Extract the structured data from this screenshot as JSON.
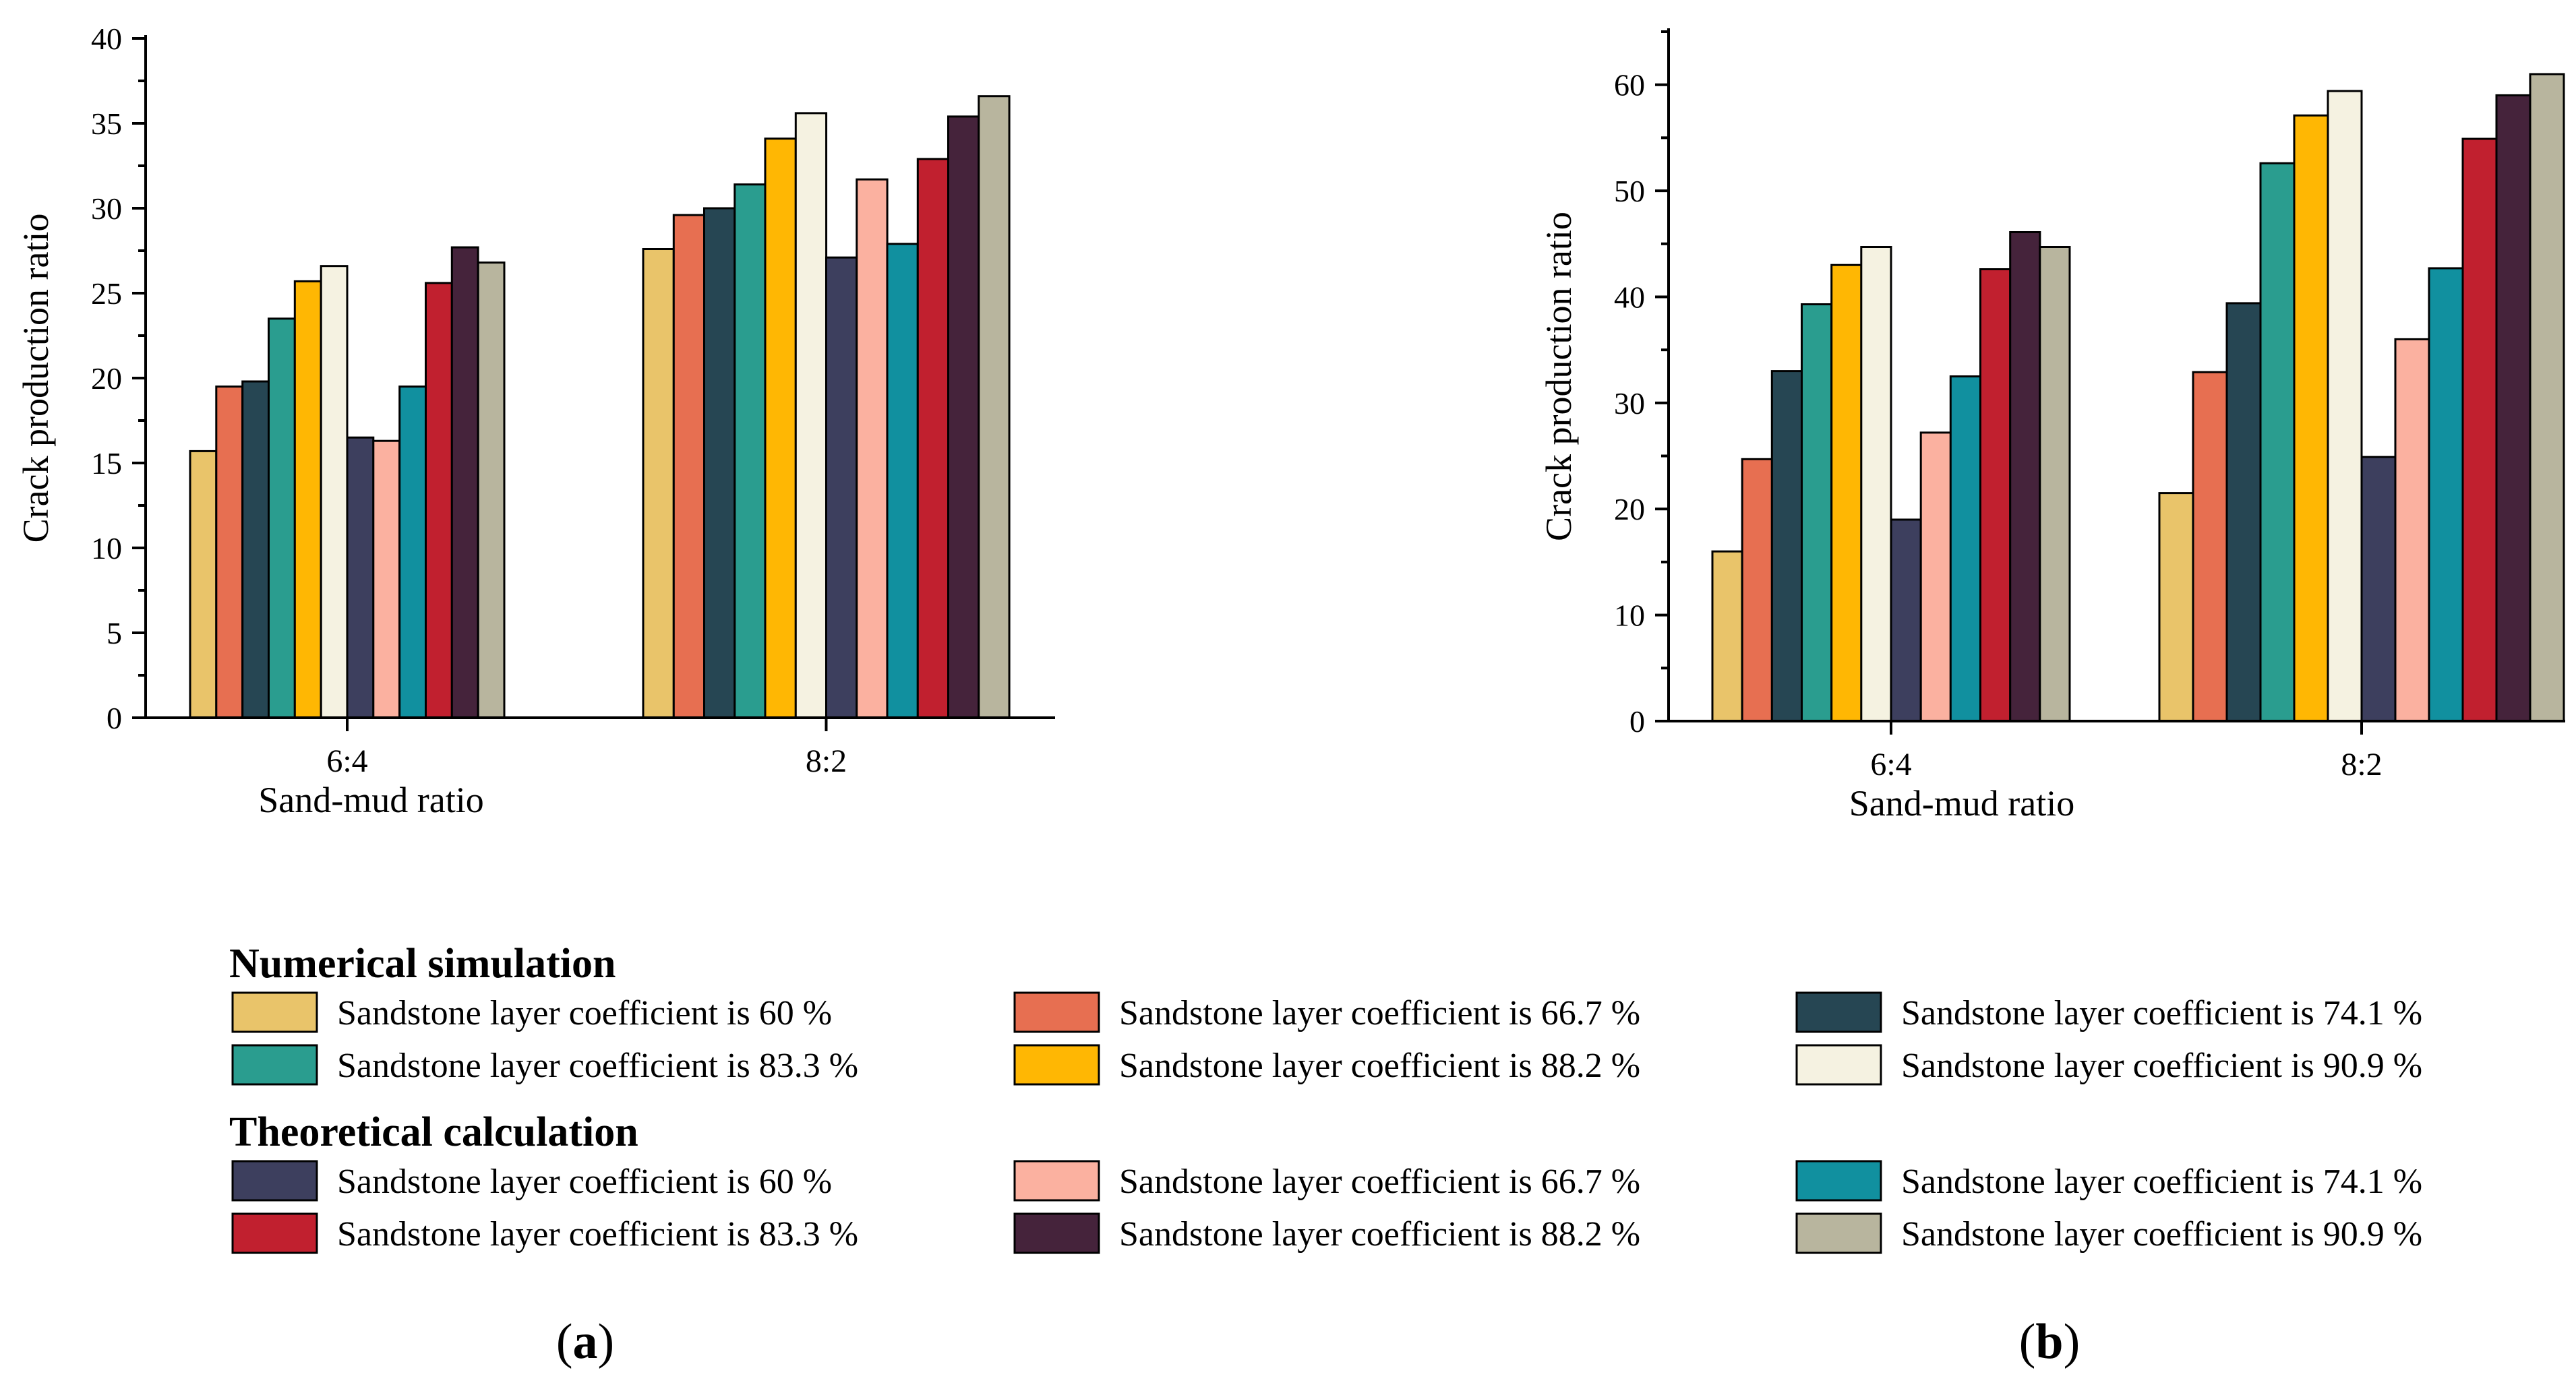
{
  "chart_data": [
    {
      "type": "bar",
      "panel": "a",
      "categories": [
        "6:4",
        "8:2"
      ],
      "xlabel": "Sand-mud ratio",
      "ylabel": "Crack production ratio",
      "ylim": [
        0,
        40
      ],
      "yticks": [
        0,
        5,
        10,
        15,
        20,
        25,
        30,
        35,
        40
      ],
      "series": [
        {
          "name": "Sandstone layer coefficient is 60 %",
          "group": "Numerical simulation",
          "values": [
            15.7,
            27.6
          ]
        },
        {
          "name": "Sandstone layer coefficient is 66.7 %",
          "group": "Numerical simulation",
          "values": [
            19.5,
            29.6
          ]
        },
        {
          "name": "Sandstone layer coefficient is 74.1 %",
          "group": "Numerical simulation",
          "values": [
            19.8,
            30.0
          ]
        },
        {
          "name": "Sandstone layer coefficient is 83.3 %",
          "group": "Numerical simulation",
          "values": [
            23.5,
            31.4
          ]
        },
        {
          "name": "Sandstone layer coefficient is 88.2 %",
          "group": "Numerical simulation",
          "values": [
            25.7,
            34.1
          ]
        },
        {
          "name": "Sandstone layer coefficient is 90.9 %",
          "group": "Numerical simulation",
          "values": [
            26.6,
            35.6
          ]
        },
        {
          "name": "Sandstone layer coefficient is 60 %",
          "group": "Theoretical calculation",
          "values": [
            16.5,
            27.1
          ]
        },
        {
          "name": "Sandstone layer coefficient is 66.7 %",
          "group": "Theoretical calculation",
          "values": [
            16.3,
            31.7
          ]
        },
        {
          "name": "Sandstone layer coefficient is 74.1 %",
          "group": "Theoretical calculation",
          "values": [
            19.5,
            27.9
          ]
        },
        {
          "name": "Sandstone layer coefficient is 83.3 %",
          "group": "Theoretical calculation",
          "values": [
            25.6,
            32.9
          ]
        },
        {
          "name": "Sandstone layer coefficient is 88.2 %",
          "group": "Theoretical calculation",
          "values": [
            27.7,
            35.4
          ]
        },
        {
          "name": "Sandstone layer coefficient is 90.9 %",
          "group": "Theoretical calculation",
          "values": [
            26.8,
            36.6
          ]
        }
      ]
    },
    {
      "type": "bar",
      "panel": "b",
      "categories": [
        "6:4",
        "8:2"
      ],
      "xlabel": "Sand-mud ratio",
      "ylabel": "Crack production ratio",
      "ylim": [
        0,
        65
      ],
      "yticks": [
        0,
        10,
        20,
        30,
        40,
        50,
        60
      ],
      "series": [
        {
          "name": "Sandstone layer coefficient is 60 %",
          "group": "Numerical simulation",
          "values": [
            16.0,
            21.5
          ]
        },
        {
          "name": "Sandstone layer coefficient is 66.7 %",
          "group": "Numerical simulation",
          "values": [
            24.7,
            32.9
          ]
        },
        {
          "name": "Sandstone layer coefficient is 74.1 %",
          "group": "Numerical simulation",
          "values": [
            33.0,
            39.4
          ]
        },
        {
          "name": "Sandstone layer coefficient is 83.3 %",
          "group": "Numerical simulation",
          "values": [
            39.3,
            52.6
          ]
        },
        {
          "name": "Sandstone layer coefficient is 88.2 %",
          "group": "Numerical simulation",
          "values": [
            43.0,
            57.1
          ]
        },
        {
          "name": "Sandstone layer coefficient is 90.9 %",
          "group": "Numerical simulation",
          "values": [
            44.7,
            59.4
          ]
        },
        {
          "name": "Sandstone layer coefficient is 60 %",
          "group": "Theoretical calculation",
          "values": [
            19.0,
            24.9
          ]
        },
        {
          "name": "Sandstone layer coefficient is 66.7 %",
          "group": "Theoretical calculation",
          "values": [
            27.2,
            36.0
          ]
        },
        {
          "name": "Sandstone layer coefficient is 74.1 %",
          "group": "Theoretical calculation",
          "values": [
            32.5,
            42.7
          ]
        },
        {
          "name": "Sandstone layer coefficient is 83.3 %",
          "group": "Theoretical calculation",
          "values": [
            42.6,
            54.9
          ]
        },
        {
          "name": "Sandstone layer coefficient is 88.2 %",
          "group": "Theoretical calculation",
          "values": [
            46.1,
            59.0
          ]
        },
        {
          "name": "Sandstone layer coefficient is 90.9 %",
          "group": "Theoretical calculation",
          "values": [
            44.7,
            61.0
          ]
        }
      ]
    }
  ],
  "series_colors": [
    "#E9C46A",
    "#E76F51",
    "#264653",
    "#2A9D8F",
    "#FFB703",
    "#F5F2E1",
    "#3D3F5E",
    "#FBB1A0",
    "#11909F",
    "#C1202F",
    "#45233B",
    "#B8B59E"
  ],
  "legend": {
    "group1_title": "Numerical simulation",
    "group2_title": "Theoretical calculation",
    "items": [
      "Sandstone layer coefficient is 60 %",
      "Sandstone layer coefficient is 66.7 %",
      "Sandstone layer coefficient is 74.1 %",
      "Sandstone layer coefficient is 83.3 %",
      "Sandstone layer coefficient is 88.2 %",
      "Sandstone layer coefficient is 90.9 %",
      "Sandstone layer coefficient is 60 %",
      "Sandstone layer coefficient is 66.7 %",
      "Sandstone layer coefficient is 74.1 %",
      "Sandstone layer coefficient is 83.3 %",
      "Sandstone layer coefficient is 88.2 %",
      "Sandstone layer coefficient is 90.9 %"
    ]
  },
  "panel_labels": {
    "a": "a",
    "b": "b"
  }
}
